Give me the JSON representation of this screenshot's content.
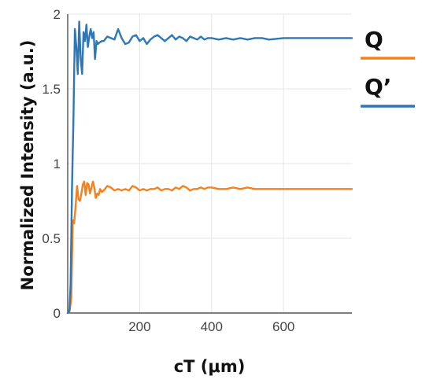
{
  "chart_data": {
    "type": "line",
    "xlabel": "cT (μm)",
    "ylabel": "Normalized Intensity (a.u.)",
    "xlim": [
      0,
      790
    ],
    "ylim": [
      0,
      2
    ],
    "x_ticks": [
      200,
      400,
      600
    ],
    "x_tick_labels": [
      "200",
      "400",
      "600"
    ],
    "y_ticks": [
      0,
      0.5,
      1,
      1.5,
      2
    ],
    "y_tick_labels": [
      "0",
      "0.5",
      "1",
      "1.5",
      "2"
    ],
    "grid": true,
    "legend_position": "right",
    "series": [
      {
        "name": "Q",
        "color": "#f28220",
        "x": [
          0,
          5,
          10,
          14,
          18,
          22,
          26,
          30,
          34,
          38,
          42,
          46,
          50,
          54,
          58,
          62,
          66,
          70,
          74,
          78,
          82,
          86,
          90,
          95,
          100,
          110,
          120,
          130,
          140,
          150,
          160,
          170,
          180,
          190,
          200,
          210,
          220,
          230,
          240,
          250,
          260,
          270,
          280,
          290,
          300,
          310,
          320,
          330,
          340,
          350,
          360,
          370,
          380,
          390,
          400,
          420,
          440,
          460,
          480,
          500,
          520,
          540,
          560,
          600,
          640,
          680,
          720,
          760,
          790
        ],
        "y": [
          0,
          0.01,
          0.1,
          0.62,
          0.6,
          0.72,
          0.85,
          0.76,
          0.75,
          0.8,
          0.86,
          0.88,
          0.79,
          0.87,
          0.86,
          0.8,
          0.84,
          0.88,
          0.84,
          0.77,
          0.8,
          0.79,
          0.83,
          0.81,
          0.82,
          0.85,
          0.84,
          0.82,
          0.83,
          0.82,
          0.83,
          0.82,
          0.85,
          0.84,
          0.82,
          0.83,
          0.82,
          0.83,
          0.83,
          0.84,
          0.82,
          0.83,
          0.83,
          0.82,
          0.84,
          0.83,
          0.85,
          0.84,
          0.82,
          0.83,
          0.83,
          0.84,
          0.83,
          0.84,
          0.84,
          0.83,
          0.83,
          0.84,
          0.83,
          0.84,
          0.83,
          0.83,
          0.83,
          0.83,
          0.83,
          0.83,
          0.83,
          0.83,
          0.83
        ]
      },
      {
        "name": "Q’",
        "color": "#2f77b5",
        "x": [
          0,
          5,
          8,
          12,
          16,
          20,
          24,
          28,
          32,
          36,
          40,
          44,
          48,
          52,
          56,
          60,
          64,
          68,
          72,
          76,
          80,
          84,
          88,
          95,
          100,
          110,
          120,
          130,
          140,
          150,
          160,
          170,
          180,
          190,
          200,
          210,
          220,
          230,
          240,
          250,
          260,
          270,
          280,
          290,
          300,
          310,
          320,
          330,
          340,
          350,
          360,
          370,
          380,
          390,
          400,
          420,
          440,
          460,
          480,
          500,
          520,
          540,
          560,
          600,
          640,
          680,
          720,
          760,
          790
        ],
        "y": [
          0,
          0.02,
          0.2,
          0.85,
          1.3,
          1.9,
          1.78,
          1.6,
          1.95,
          1.7,
          1.6,
          1.88,
          1.82,
          1.93,
          1.78,
          1.85,
          1.9,
          1.84,
          1.88,
          1.7,
          1.82,
          1.8,
          1.81,
          1.82,
          1.82,
          1.85,
          1.84,
          1.83,
          1.9,
          1.84,
          1.8,
          1.81,
          1.85,
          1.86,
          1.82,
          1.84,
          1.8,
          1.83,
          1.85,
          1.86,
          1.84,
          1.82,
          1.84,
          1.86,
          1.83,
          1.85,
          1.84,
          1.82,
          1.85,
          1.84,
          1.83,
          1.85,
          1.83,
          1.84,
          1.84,
          1.83,
          1.84,
          1.83,
          1.84,
          1.83,
          1.84,
          1.84,
          1.83,
          1.84,
          1.84,
          1.84,
          1.84,
          1.84,
          1.84
        ]
      }
    ]
  }
}
